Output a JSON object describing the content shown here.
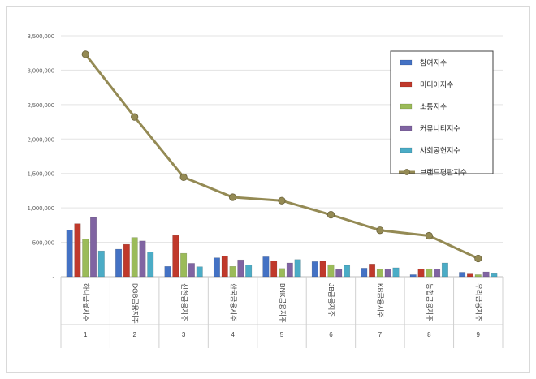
{
  "chart_data": {
    "type": "bar",
    "title": "",
    "xlabel": "",
    "ylabel": "",
    "ylim": [
      0,
      3500000
    ],
    "yticks": [
      "-",
      "500,000",
      "1,000,000",
      "1,500,000",
      "2,000,000",
      "2,500,000",
      "3,000,000",
      "3,500,000"
    ],
    "categories": [
      "하나금융지주",
      "DGB금융지주",
      "신한금융지주",
      "한국금융지주",
      "BNK금융지주",
      "JB금융지주",
      "KB금융지주",
      "농협금융지주",
      "우리금융지주"
    ],
    "ranks": [
      "1",
      "2",
      "3",
      "4",
      "5",
      "6",
      "7",
      "8",
      "9"
    ],
    "grid": true,
    "legend_position": "top-right",
    "series": [
      {
        "name": "참여지수",
        "type": "bar",
        "color": "#4472c4",
        "values": [
          680000,
          400000,
          150000,
          275000,
          290000,
          220000,
          125000,
          30000,
          65000
        ]
      },
      {
        "name": "미디어지수",
        "type": "bar",
        "color": "#c0392b",
        "values": [
          770000,
          470000,
          600000,
          300000,
          230000,
          225000,
          185000,
          115000,
          40000
        ]
      },
      {
        "name": "소통지수",
        "type": "bar",
        "color": "#9bbb59",
        "values": [
          545000,
          570000,
          340000,
          150000,
          120000,
          175000,
          110000,
          115000,
          30000
        ]
      },
      {
        "name": "커뮤니티지수",
        "type": "bar",
        "color": "#8064a2",
        "values": [
          860000,
          520000,
          195000,
          245000,
          200000,
          105000,
          115000,
          110000,
          70000
        ]
      },
      {
        "name": "사회공헌지수",
        "type": "bar",
        "color": "#4bacc6",
        "values": [
          375000,
          360000,
          145000,
          170000,
          250000,
          165000,
          130000,
          200000,
          45000
        ]
      },
      {
        "name": "브랜드평판지수",
        "type": "line",
        "color": "#948a54",
        "values": [
          3230000,
          2320000,
          1445000,
          1155000,
          1105000,
          900000,
          675000,
          595000,
          265000
        ]
      }
    ]
  }
}
